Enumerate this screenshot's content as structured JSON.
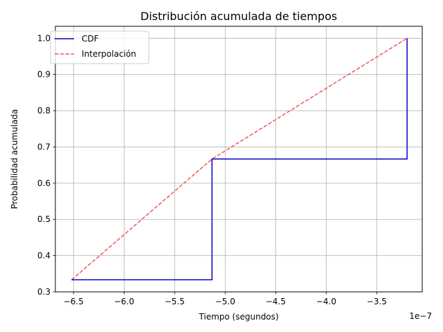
{
  "chart_data": {
    "type": "line",
    "title": "Distribución acumulada de tiempos",
    "xlabel": "Tiempo (segundos)",
    "ylabel": "Probabilidad acumulada",
    "x_offset_text": "1e−7",
    "xlim": [
      -6.68,
      -3.05
    ],
    "ylim": [
      0.3,
      1.033
    ],
    "xticks": [
      -6.5,
      -6.0,
      -5.5,
      -5.0,
      -4.5,
      -4.0,
      -3.5
    ],
    "xtick_labels": [
      "−6.5",
      "−6.0",
      "−5.5",
      "−5.0",
      "−4.5",
      "−4.0",
      "−3.5"
    ],
    "yticks": [
      0.3,
      0.4,
      0.5,
      0.6,
      0.7,
      0.8,
      0.9,
      1.0
    ],
    "ytick_labels": [
      "0.3",
      "0.4",
      "0.5",
      "0.6",
      "0.7",
      "0.8",
      "0.9",
      "1.0"
    ],
    "grid": true,
    "legend_position": "top-left",
    "series": [
      {
        "name": "CDF",
        "style": "step-post",
        "color": "#0000cc",
        "dash": "solid",
        "x": [
          -6.52,
          -5.13,
          -3.2
        ],
        "y": [
          0.3333,
          0.6667,
          1.0
        ]
      },
      {
        "name": "Interpolación",
        "style": "line",
        "color": "#ee4444",
        "dash": "dashed",
        "x": [
          -6.52,
          -5.13,
          -3.2
        ],
        "y": [
          0.3333,
          0.6667,
          1.0
        ]
      }
    ]
  }
}
